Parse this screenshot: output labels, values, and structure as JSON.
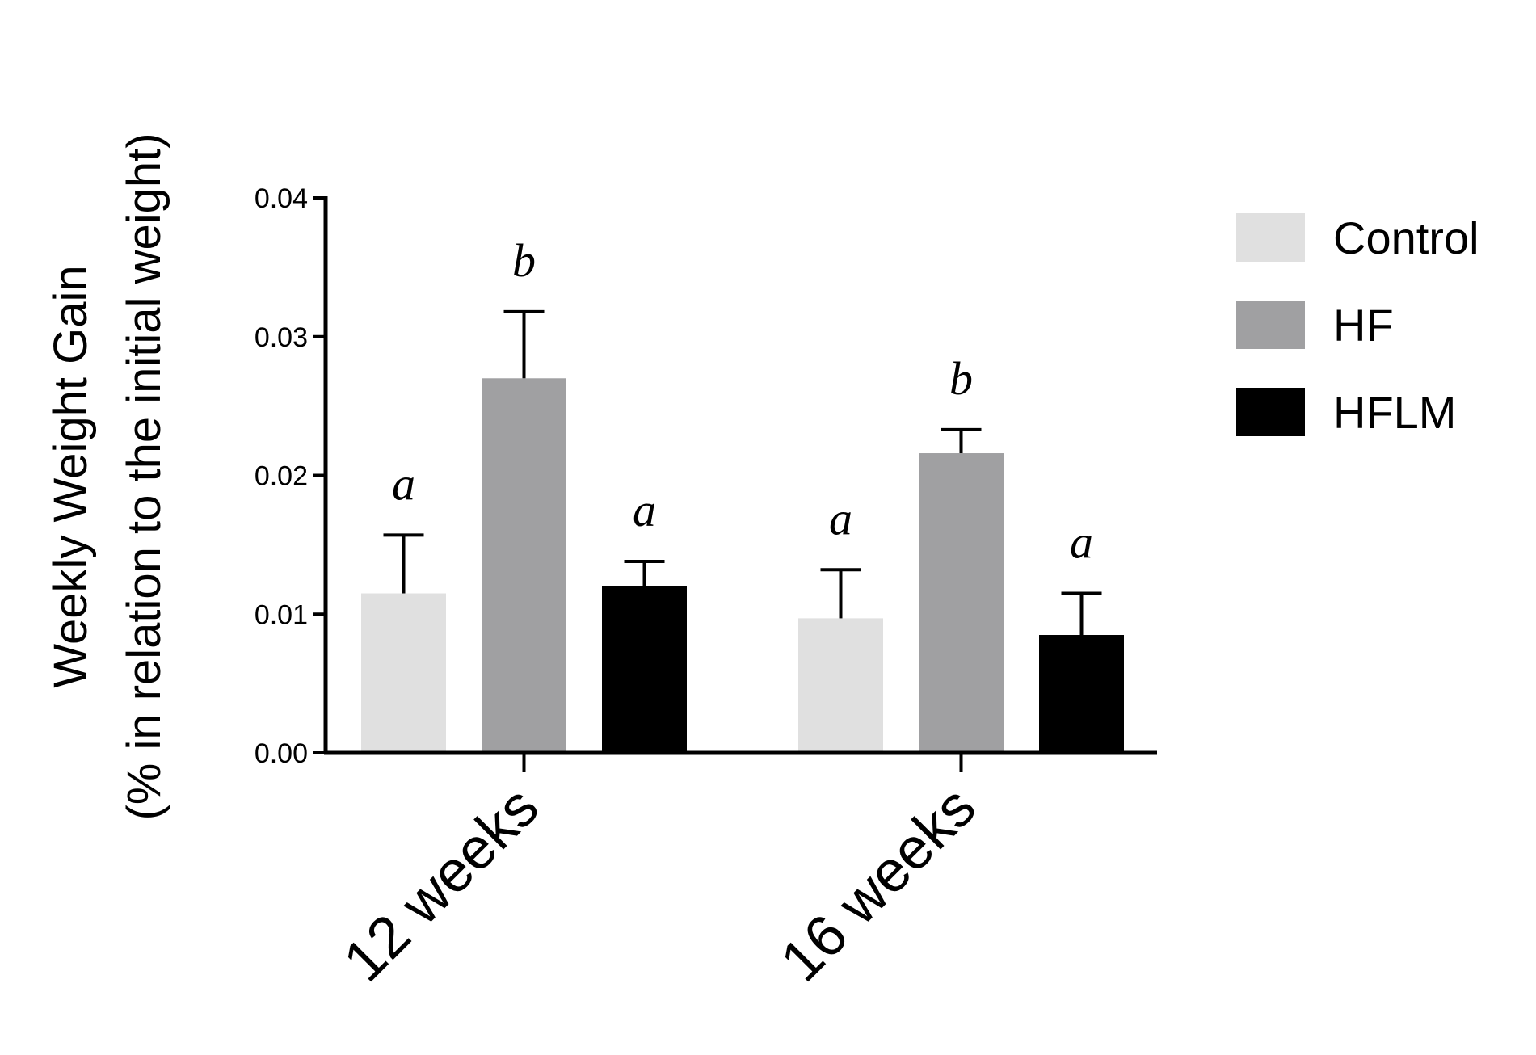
{
  "chart_data": {
    "type": "bar",
    "categories": [
      "12 weeks",
      "16 weeks"
    ],
    "series": [
      {
        "name": "Control",
        "values": [
          0.0115,
          0.0097
        ],
        "errors": [
          0.0042,
          0.0035
        ],
        "sig": [
          "a",
          "a"
        ],
        "color": "#e0e0e0"
      },
      {
        "name": "HF",
        "values": [
          0.027,
          0.0216
        ],
        "errors": [
          0.0048,
          0.0017
        ],
        "sig": [
          "b",
          "b"
        ],
        "color": "#a0a0a2"
      },
      {
        "name": "HFLM",
        "values": [
          0.012,
          0.0085
        ],
        "errors": [
          0.0018,
          0.003
        ],
        "sig": [
          "a",
          "a"
        ],
        "color": "#000000"
      }
    ],
    "ylim": [
      0,
      0.04
    ],
    "yticks": [
      "0.00",
      "0.01",
      "0.02",
      "0.03",
      "0.04"
    ],
    "ylabel_line1": "Weekly Weight Gain",
    "ylabel_line2": "(% in relation to the initial weight)",
    "xlabel": "",
    "legend_position": "right",
    "grid": false
  }
}
